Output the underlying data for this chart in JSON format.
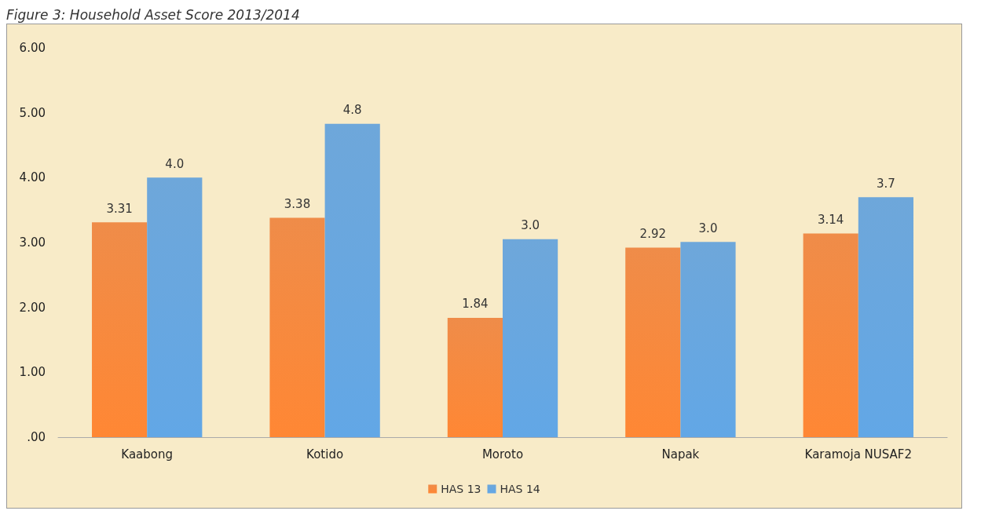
{
  "chart_data": {
    "type": "bar",
    "title": "Figure 3: Household Asset Score 2013/2014",
    "categories": [
      "Kaabong",
      "Kotido",
      "Moroto",
      "Napak",
      "Karamoja NUSAF2"
    ],
    "series": [
      {
        "name": "HAS 13",
        "color": "#ed7d31",
        "values": [
          3.31,
          3.38,
          1.84,
          2.92,
          3.14
        ],
        "value_labels": [
          "3.31",
          "3.38",
          "1.84",
          "2.92",
          "3.14"
        ]
      },
      {
        "name": "HAS 14",
        "color": "#5b9bd5",
        "values": [
          4.0,
          4.83,
          3.05,
          3.01,
          3.7
        ],
        "value_labels": [
          "4.0",
          "4.8",
          "3.0",
          "3.0",
          "3.7"
        ]
      }
    ],
    "ylim": [
      0,
      6
    ],
    "yticks": [
      {
        "value": 0,
        "label": ".00"
      },
      {
        "value": 1,
        "label": "1.00"
      },
      {
        "value": 2,
        "label": "2.00"
      },
      {
        "value": 3,
        "label": "3.00"
      },
      {
        "value": 4,
        "label": "4.00"
      },
      {
        "value": 5,
        "label": "5.00"
      },
      {
        "value": 6,
        "label": "6.00"
      }
    ],
    "grid": false,
    "legend": "bottom"
  }
}
